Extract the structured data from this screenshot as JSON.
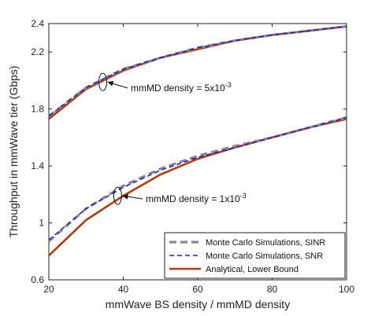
{
  "chart_data": {
    "type": "line",
    "xlabel": "mmWave BS density / mmMD density",
    "ylabel": "Throughput in mmWave tier (Gbps)",
    "xlim": [
      20,
      100
    ],
    "ylim": [
      0.6,
      2.4
    ],
    "xticks": [
      "20",
      "40",
      "60",
      "80",
      "100"
    ],
    "yticks": [
      "0.6",
      "1",
      "1.4",
      "1.8",
      "2.2",
      "2.4"
    ],
    "grid": false,
    "legend_position": "bottom-right",
    "legend": [
      "Monte Carlo Simulations, SINR",
      "Monte Carlo Simulations, SNR",
      "Analytical, Lower Bound"
    ],
    "colors": {
      "sinr": "#8a8a8a",
      "snr": "#1f1fd6",
      "analytical": "#b23c0e"
    },
    "annotations": [
      {
        "text_base": "mmMD density = 5x10",
        "exponent": "-3"
      },
      {
        "text_base": "mmMD density = 1x10",
        "exponent": "-3"
      }
    ],
    "series": [
      {
        "name": "Monte Carlo Simulations, SINR",
        "group": "5e-3",
        "style": "dashed",
        "color": "#8a8a8a",
        "x": [
          20,
          30,
          40,
          50,
          60,
          70,
          80,
          90,
          100
        ],
        "y": [
          1.75,
          1.95,
          2.08,
          2.16,
          2.23,
          2.28,
          2.32,
          2.35,
          2.38
        ]
      },
      {
        "name": "Monte Carlo Simulations, SNR",
        "group": "5e-3",
        "style": "dashed",
        "color": "#1f1fd6",
        "x": [
          20,
          30,
          40,
          50,
          60,
          70,
          80,
          90,
          100
        ],
        "y": [
          1.75,
          1.95,
          2.08,
          2.16,
          2.23,
          2.28,
          2.32,
          2.35,
          2.38
        ]
      },
      {
        "name": "Analytical, Lower Bound",
        "group": "5e-3",
        "style": "solid",
        "color": "#b23c0e",
        "x": [
          20,
          30,
          40,
          50,
          60,
          70,
          80,
          90,
          100
        ],
        "y": [
          1.73,
          1.94,
          2.07,
          2.16,
          2.22,
          2.28,
          2.32,
          2.35,
          2.38
        ]
      },
      {
        "name": "Monte Carlo Simulations, SINR",
        "group": "1e-3",
        "style": "dashed",
        "color": "#8a8a8a",
        "x": [
          20,
          30,
          40,
          50,
          60,
          70,
          80,
          90,
          100
        ],
        "y": [
          0.87,
          1.1,
          1.26,
          1.38,
          1.47,
          1.54,
          1.6,
          1.67,
          1.74
        ]
      },
      {
        "name": "Monte Carlo Simulations, SNR",
        "group": "1e-3",
        "style": "dashed",
        "color": "#1f1fd6",
        "x": [
          20,
          30,
          40,
          50,
          60,
          70,
          80,
          90,
          100
        ],
        "y": [
          0.88,
          1.1,
          1.25,
          1.37,
          1.46,
          1.53,
          1.6,
          1.67,
          1.74
        ]
      },
      {
        "name": "Analytical, Lower Bound",
        "group": "1e-3",
        "style": "solid",
        "color": "#b23c0e",
        "x": [
          20,
          30,
          40,
          50,
          60,
          70,
          80,
          90,
          100
        ],
        "y": [
          0.77,
          1.02,
          1.19,
          1.34,
          1.45,
          1.53,
          1.6,
          1.67,
          1.73
        ]
      }
    ]
  }
}
